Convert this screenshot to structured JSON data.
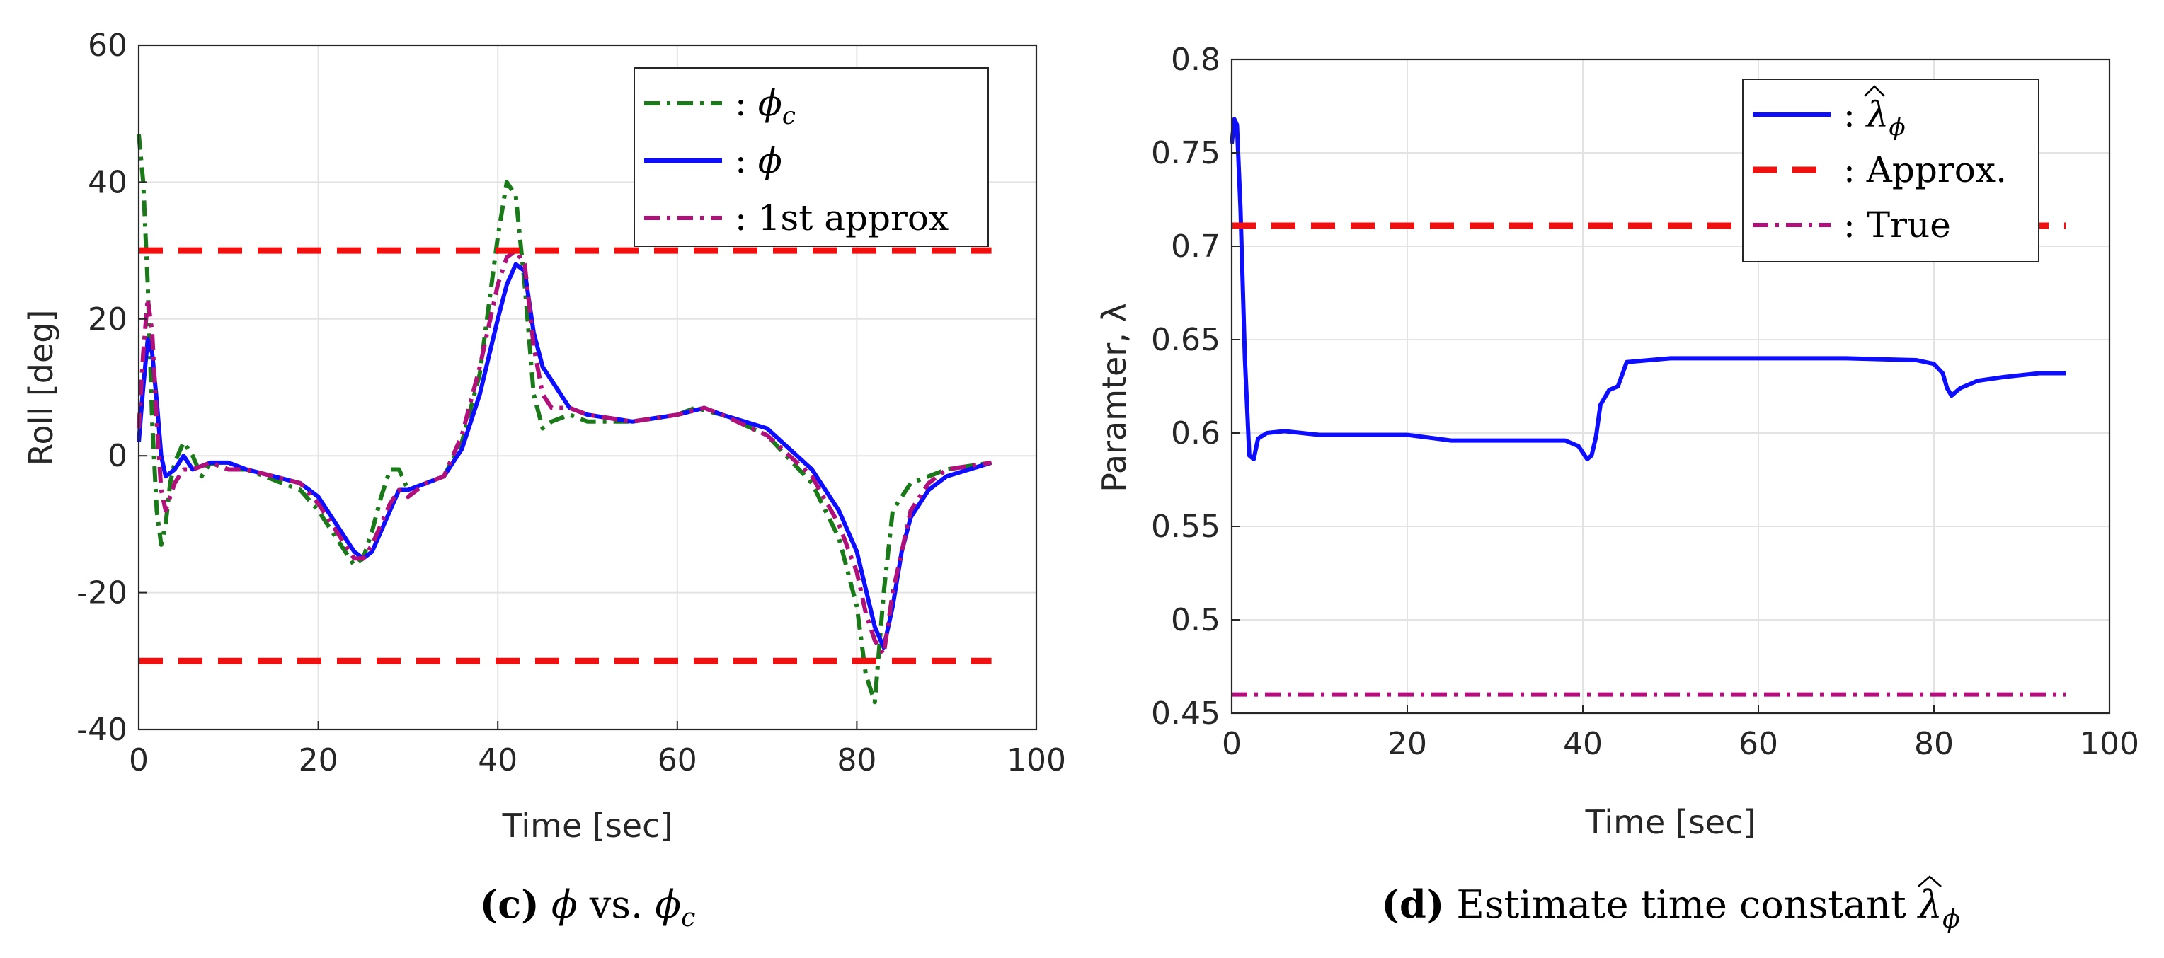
{
  "chart_data": [
    {
      "type": "line",
      "xlabel": "Time [sec]",
      "ylabel": "Roll [deg]",
      "xlim": [
        0,
        100
      ],
      "ylim": [
        -40,
        60
      ],
      "xticks": [
        "0",
        "20",
        "40",
        "60",
        "80",
        "100"
      ],
      "yticks": [
        "60",
        "40",
        "20",
        "0",
        "-20",
        "-40"
      ],
      "grid": true,
      "legend_position": "top-right",
      "caption": {
        "label": "(c)",
        "sym1": "ϕ",
        "mid": " vs. ",
        "sym2": "ϕ",
        "sub2": "c"
      },
      "series": [
        {
          "legend": ": ϕ_c",
          "sym": "ϕ",
          "sub": "c",
          "color": "#1a7a1a",
          "dash": "dashdot",
          "x": [
            0,
            0.5,
            1,
            1.5,
            2,
            2.5,
            3,
            3.5,
            4,
            5,
            6,
            7,
            8,
            10,
            12,
            14,
            16,
            18,
            20,
            22,
            24,
            25,
            26,
            27,
            28,
            29,
            30,
            32,
            34,
            36,
            38,
            39,
            40,
            41,
            42,
            43,
            44,
            45,
            46,
            48,
            50,
            55,
            60,
            62,
            65,
            70,
            75,
            78,
            80,
            81,
            82,
            83,
            84,
            86,
            88,
            90,
            95
          ],
          "y": [
            47,
            40,
            25,
            5,
            -8,
            -13,
            -10,
            -4,
            -1,
            2,
            0,
            -3,
            -1,
            -2,
            -2,
            -3,
            -4,
            -5,
            -8,
            -12,
            -16,
            -15,
            -11,
            -6,
            -2,
            -2,
            -5,
            -4,
            -3,
            2,
            12,
            22,
            32,
            40,
            38,
            25,
            9,
            4,
            5,
            6,
            5,
            5,
            6,
            7,
            6,
            3,
            -4,
            -12,
            -22,
            -32,
            -36,
            -20,
            -8,
            -4,
            -3,
            -2,
            -1
          ]
        },
        {
          "legend": ": ϕ",
          "sym": "ϕ",
          "sub": "",
          "color": "#0d0dff",
          "dash": "solid",
          "x": [
            0,
            0.5,
            1,
            1.5,
            2,
            2.5,
            3,
            4,
            5,
            6,
            8,
            10,
            12,
            15,
            18,
            20,
            22,
            24,
            25,
            26,
            28,
            29,
            30,
            32,
            34,
            36,
            38,
            40,
            41,
            42,
            43,
            44,
            45,
            46,
            48,
            50,
            55,
            60,
            63,
            65,
            70,
            75,
            78,
            80,
            82,
            83,
            84,
            85,
            86,
            88,
            90,
            95
          ],
          "y": [
            2,
            10,
            17,
            15,
            8,
            0,
            -3,
            -2,
            0,
            -2,
            -1,
            -1,
            -2,
            -3,
            -4,
            -6,
            -10,
            -14,
            -15,
            -14,
            -8,
            -5,
            -5,
            -4,
            -3,
            1,
            9,
            20,
            25,
            28,
            27,
            18,
            13,
            11,
            7,
            6,
            5,
            6,
            7,
            6,
            4,
            -2,
            -8,
            -14,
            -25,
            -28,
            -22,
            -14,
            -9,
            -5,
            -3,
            -1
          ]
        },
        {
          "legend": ": 1st approx",
          "sym": "",
          "sub": "",
          "color": "#b0107a",
          "dash": "dashdot",
          "x": [
            0,
            0.5,
            1,
            1.5,
            2,
            2.5,
            3,
            4,
            5,
            6,
            8,
            10,
            12,
            15,
            18,
            20,
            22,
            24,
            25,
            26,
            28,
            29,
            30,
            32,
            34,
            36,
            38,
            40,
            41,
            42,
            43,
            44,
            45,
            46,
            48,
            50,
            55,
            60,
            63,
            65,
            70,
            75,
            78,
            80,
            81,
            82,
            83,
            84,
            86,
            88,
            90,
            95
          ],
          "y": [
            4,
            15,
            23,
            18,
            5,
            -5,
            -8,
            -4,
            -2,
            -2,
            -1,
            -2,
            -2,
            -3,
            -4,
            -7,
            -11,
            -15,
            -15,
            -13,
            -7,
            -5,
            -6,
            -4,
            -3,
            3,
            13,
            25,
            29,
            30,
            28,
            16,
            9,
            7,
            7,
            6,
            5,
            6,
            7,
            6,
            3,
            -3,
            -10,
            -17,
            -23,
            -27,
            -29,
            -20,
            -8,
            -4,
            -2,
            -1
          ]
        },
        {
          "legend": "",
          "color": "#f01010",
          "dash": "dashed",
          "x": [
            0,
            95
          ],
          "y": [
            30,
            30
          ]
        },
        {
          "legend": "",
          "color": "#f01010",
          "dash": "dashed",
          "x": [
            0,
            95
          ],
          "y": [
            -30,
            -30
          ]
        }
      ]
    },
    {
      "type": "line",
      "xlabel": "Time [sec]",
      "ylabel": "Paramter, λ",
      "xlim": [
        0,
        100
      ],
      "ylim": [
        0.45,
        0.8
      ],
      "xticks": [
        "0",
        "20",
        "40",
        "60",
        "80",
        "100"
      ],
      "yticks": [
        "0.8",
        "0.75",
        "0.7",
        "0.65",
        "0.6",
        "0.55",
        "0.5",
        "0.45"
      ],
      "grid": true,
      "legend_position": "top-right",
      "caption": {
        "label": "(d)",
        "text": " Estimate time constant ",
        "sym": "λ",
        "sub": "ϕ"
      },
      "series": [
        {
          "legend": ": λ̂_ϕ",
          "sym": "λ",
          "sub": "ϕ",
          "color": "#0d0dff",
          "dash": "solid",
          "x": [
            0,
            0.3,
            0.6,
            1,
            1.5,
            2,
            2.5,
            3,
            4,
            6,
            8,
            10,
            15,
            20,
            25,
            30,
            35,
            38,
            39.5,
            40.5,
            41,
            41.5,
            42,
            43,
            44,
            45,
            50,
            60,
            70,
            78,
            80,
            81,
            81.5,
            82,
            83,
            84,
            85,
            88,
            92,
            95
          ],
          "y": [
            0.755,
            0.768,
            0.765,
            0.72,
            0.64,
            0.588,
            0.586,
            0.597,
            0.6,
            0.601,
            0.6,
            0.599,
            0.599,
            0.599,
            0.596,
            0.596,
            0.596,
            0.596,
            0.593,
            0.586,
            0.588,
            0.598,
            0.615,
            0.623,
            0.625,
            0.638,
            0.64,
            0.64,
            0.64,
            0.639,
            0.637,
            0.632,
            0.624,
            0.62,
            0.624,
            0.626,
            0.628,
            0.63,
            0.632,
            0.632
          ]
        },
        {
          "legend": ": Approx.",
          "sym": "",
          "sub": "",
          "color": "#f01010",
          "dash": "dashed",
          "x": [
            0,
            95
          ],
          "y": [
            0.711,
            0.711
          ]
        },
        {
          "legend": ": True",
          "sym": "",
          "sub": "",
          "color": "#b0107a",
          "dash": "dashdot",
          "x": [
            0,
            95
          ],
          "y": [
            0.46,
            0.46
          ]
        }
      ]
    }
  ]
}
